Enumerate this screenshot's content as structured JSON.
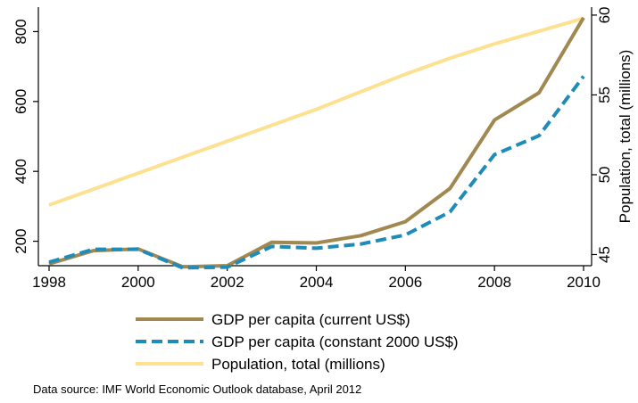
{
  "chart_data": {
    "type": "line",
    "x": [
      1998,
      1999,
      2000,
      2001,
      2002,
      2003,
      2004,
      2005,
      2006,
      2007,
      2008,
      2009,
      2010
    ],
    "xlim": [
      1998,
      2010
    ],
    "xticks": [
      1998,
      2000,
      2002,
      2004,
      2006,
      2008,
      2010
    ],
    "y_left": {
      "ylim": [
        130,
        870
      ],
      "ticks": [
        200,
        400,
        600,
        800
      ],
      "label": ""
    },
    "y_right": {
      "ylim": [
        44.3,
        60.5
      ],
      "ticks": [
        45,
        50,
        55,
        60
      ],
      "label": "Population, total (millions)"
    },
    "series": [
      {
        "name": "GDP per capita (current US$)",
        "axis": "left",
        "color": "#a08850",
        "dash": "solid",
        "values": [
          135,
          173,
          178,
          127,
          130,
          197,
          195,
          216,
          256,
          351,
          547,
          625,
          840
        ]
      },
      {
        "name": "GDP per capita (constant 2000 US$)",
        "axis": "left",
        "color": "#1f8bb8",
        "dash": "dashed",
        "values": [
          140,
          177,
          177,
          124,
          126,
          185,
          180,
          192,
          218,
          284,
          448,
          502,
          672
        ]
      },
      {
        "name": "Population, total (millions)",
        "axis": "right",
        "color": "#fde191",
        "dash": "solid",
        "values": [
          48.1,
          49.1,
          50.1,
          51.1,
          52.1,
          53.1,
          54.1,
          55.2,
          56.3,
          57.3,
          58.2,
          59.0,
          59.8
        ]
      }
    ],
    "legend_position": "bottom",
    "grid": false,
    "source_note": "Data source: IMF World Economic Outlook database, April 2012"
  }
}
